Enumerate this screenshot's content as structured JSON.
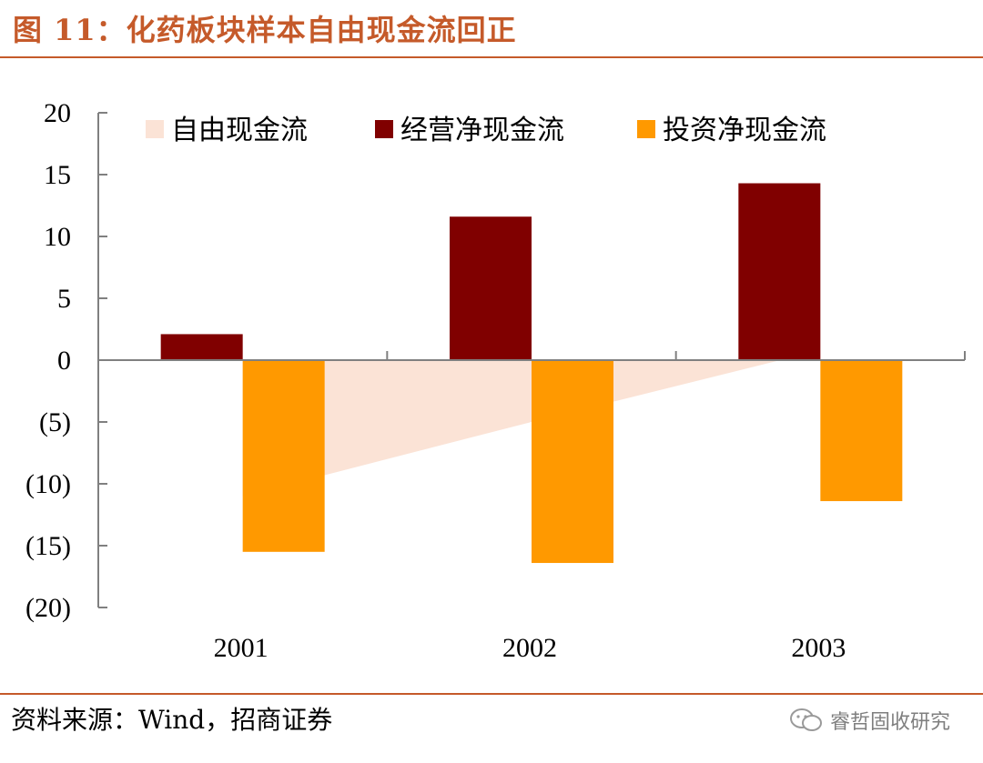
{
  "figure": {
    "title": "图 11：化药板块样本自由现金流回正",
    "source": "资料来源：Wind，招商证券",
    "watermark": "睿哲固收研究"
  },
  "colors": {
    "accent": "#c55a2a",
    "free_cash_flow": "#fbe3d6",
    "operating_cash_flow": "#800000",
    "investing_cash_flow": "#ff9900",
    "axis": "#808080"
  },
  "chart_data": {
    "type": "bar",
    "title": "图 11：化药板块样本自由现金流回正",
    "xlabel": "",
    "ylabel": "",
    "categories": [
      "2001",
      "2002",
      "2003"
    ],
    "ylim": [
      -20,
      20
    ],
    "yticks": [
      20,
      15,
      10,
      5,
      0,
      -5,
      -10,
      -15,
      -20
    ],
    "ytick_labels": [
      "20",
      "15",
      "10",
      "5",
      "0",
      "(5)",
      "(10)",
      "(15)",
      "(20)"
    ],
    "legend_position": "top",
    "series": [
      {
        "name": "自由现金流",
        "kind": "area",
        "values": [
          -11.0,
          -5.0,
          0.8
        ]
      },
      {
        "name": "经营净现金流",
        "kind": "bar",
        "values": [
          2.1,
          11.6,
          14.3
        ]
      },
      {
        "name": "投资净现金流",
        "kind": "bar",
        "values": [
          -15.5,
          -16.4,
          -11.4
        ]
      }
    ]
  }
}
